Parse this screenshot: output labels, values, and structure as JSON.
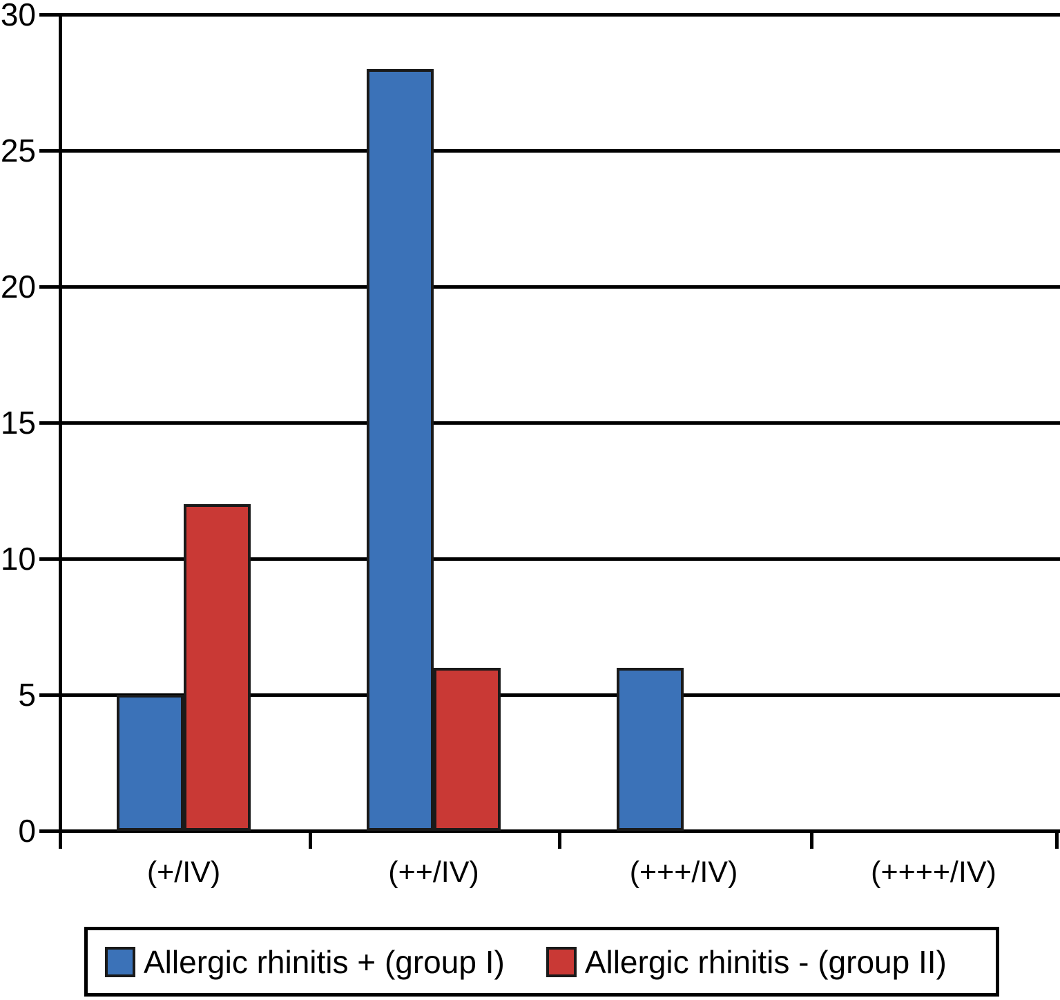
{
  "chart_data": {
    "type": "bar",
    "title": "",
    "categories": [
      "(+/IV)",
      "(++/IV)",
      "(+++/IV)",
      "(++++/IV)"
    ],
    "series": [
      {
        "name": "Allergic rhinitis + (group I)",
        "color": "#3b72b8",
        "values": [
          5,
          28,
          6,
          0
        ]
      },
      {
        "name": "Allergic rhinitis - (group II)",
        "color": "#c93935",
        "values": [
          12,
          6,
          0,
          0
        ]
      }
    ],
    "ylabel": "",
    "xlabel": "",
    "ylim": [
      0,
      30
    ],
    "yticks": [
      0,
      5,
      10,
      15,
      20,
      25,
      30
    ],
    "grid": true,
    "gridline_color": "#000000",
    "axis_color": "#000000",
    "legend_position": "bottom"
  }
}
